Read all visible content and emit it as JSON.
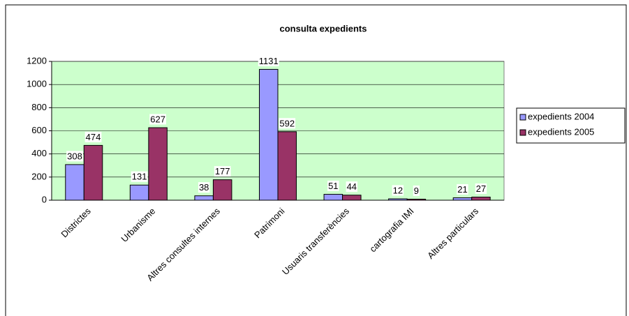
{
  "chart_data": {
    "type": "bar",
    "title": "consulta expedients",
    "categories": [
      "Districtes",
      "Urbanisme",
      "Altres consultes internes",
      "Patrimoni",
      "Usuaris transferències",
      "cartografia IMI",
      "Altres particulars"
    ],
    "series": [
      {
        "name": "expedients 2004",
        "color": "#9999ff",
        "values": [
          308,
          131,
          38,
          1131,
          51,
          12,
          21
        ]
      },
      {
        "name": "expedients 2005",
        "color": "#993366",
        "values": [
          474,
          627,
          177,
          592,
          44,
          9,
          27
        ]
      }
    ],
    "ylim": [
      0,
      1200
    ],
    "yticks": [
      0,
      200,
      400,
      600,
      800,
      1000,
      1200
    ],
    "grid": true,
    "plot_background": "#ccffcc",
    "legend": "right"
  }
}
